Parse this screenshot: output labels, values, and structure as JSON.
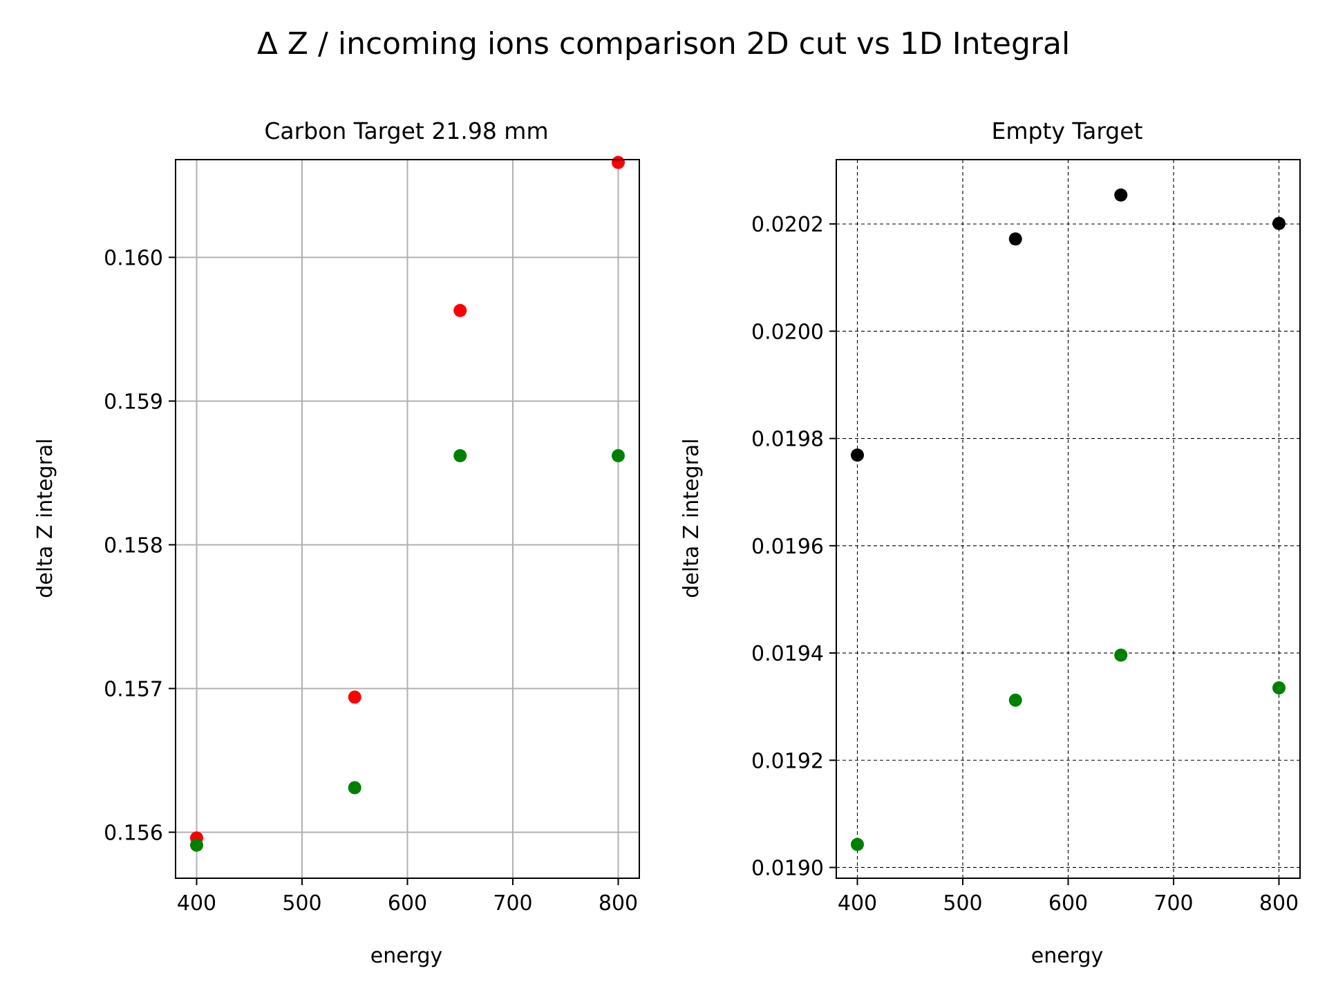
{
  "figure": {
    "suptitle": "Δ Z / incoming ions comparison 2D cut vs 1D Integral"
  },
  "colors": {
    "red": "#ff0000",
    "green": "#008000",
    "black": "#000000",
    "grid_left": "#b0b0b0",
    "grid_right": "#000000"
  },
  "chart_data": [
    {
      "type": "scatter",
      "title": "Carbon Target 21.98 mm",
      "xlabel": "energy",
      "ylabel": "delta Z integral",
      "xlim": [
        380,
        820
      ],
      "ylim": [
        0.15568,
        0.16068
      ],
      "xticks": [
        400,
        500,
        600,
        700,
        800
      ],
      "xtick_labels": [
        "400",
        "500",
        "600",
        "700",
        "800"
      ],
      "yticks": [
        0.156,
        0.157,
        0.158,
        0.159,
        0.16
      ],
      "ytick_labels": [
        "0.156",
        "0.157",
        "0.158",
        "0.159",
        "0.160"
      ],
      "grid": "solid",
      "series": [
        {
          "color": "#ff0000",
          "x": [
            400,
            550,
            650,
            800
          ],
          "y": [
            0.15596,
            0.15694,
            0.15963,
            0.16066
          ]
        },
        {
          "color": "#008000",
          "x": [
            400,
            550,
            650,
            800
          ],
          "y": [
            0.15591,
            0.15631,
            0.15862,
            0.15862
          ]
        }
      ]
    },
    {
      "type": "scatter",
      "title": "Empty Target",
      "xlabel": "energy",
      "ylabel": "delta Z integral",
      "xlim": [
        380,
        820
      ],
      "ylim": [
        0.01898,
        0.02032
      ],
      "xticks": [
        400,
        500,
        600,
        700,
        800
      ],
      "xtick_labels": [
        "400",
        "500",
        "600",
        "700",
        "800"
      ],
      "yticks": [
        0.019,
        0.0192,
        0.0194,
        0.0196,
        0.0198,
        0.02,
        0.0202
      ],
      "ytick_labels": [
        "0.0190",
        "0.0192",
        "0.0194",
        "0.0196",
        "0.0198",
        "0.0200",
        "0.0202"
      ],
      "grid": "dashed",
      "series": [
        {
          "color": "#000000",
          "x": [
            400,
            550,
            650,
            800
          ],
          "y": [
            0.019769,
            0.020172,
            0.020254,
            0.020201
          ]
        },
        {
          "color": "#008000",
          "x": [
            400,
            550,
            650,
            800
          ],
          "y": [
            0.019043,
            0.019312,
            0.019396,
            0.019335
          ]
        }
      ]
    }
  ]
}
